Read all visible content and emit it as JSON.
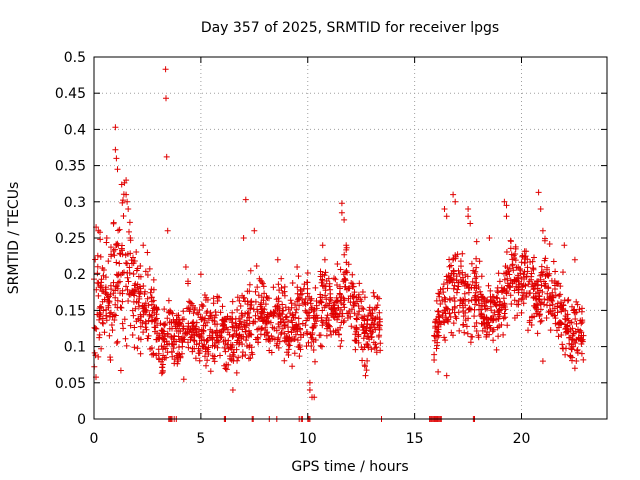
{
  "chart_data": {
    "type": "scatter",
    "title": "Day 357 of 2025, SRMTID for receiver lpgs",
    "xlabel": "GPS time / hours",
    "ylabel": "SRMTID / TECUs",
    "xlim": [
      0,
      24
    ],
    "ylim": [
      0,
      0.5
    ],
    "xticks": [
      0,
      5,
      10,
      15,
      20
    ],
    "xtick_labels": [
      "0",
      "5",
      "10",
      "15",
      "20"
    ],
    "yticks": [
      0,
      0.05,
      0.1,
      0.15,
      0.2,
      0.25,
      0.3,
      0.35,
      0.4,
      0.45,
      0.5
    ],
    "ytick_labels": [
      "0",
      "0.05",
      "0.1",
      "0.15",
      "0.2",
      "0.25",
      "0.3",
      "0.35",
      "0.4",
      "0.45",
      "0.5"
    ],
    "grid": true,
    "marker": "+",
    "color": "#e00000",
    "series": [
      {
        "name": "SRMTID",
        "profile": [
          [
            0.0,
            0.13,
            0.07
          ],
          [
            0.3,
            0.17,
            0.08
          ],
          [
            0.7,
            0.14,
            0.07
          ],
          [
            1.0,
            0.19,
            0.1
          ],
          [
            1.3,
            0.2,
            0.13
          ],
          [
            1.6,
            0.21,
            0.09
          ],
          [
            2.0,
            0.17,
            0.07
          ],
          [
            2.4,
            0.15,
            0.06
          ],
          [
            2.8,
            0.14,
            0.06
          ],
          [
            3.1,
            0.1,
            0.04
          ],
          [
            3.5,
            0.12,
            0.04
          ],
          [
            3.9,
            0.11,
            0.04
          ],
          [
            4.3,
            0.14,
            0.05
          ],
          [
            4.7,
            0.12,
            0.04
          ],
          [
            5.1,
            0.13,
            0.05
          ],
          [
            5.5,
            0.11,
            0.05
          ],
          [
            5.9,
            0.13,
            0.05
          ],
          [
            6.3,
            0.1,
            0.04
          ],
          [
            6.7,
            0.12,
            0.05
          ],
          [
            7.1,
            0.13,
            0.06
          ],
          [
            7.5,
            0.14,
            0.06
          ],
          [
            7.9,
            0.15,
            0.05
          ],
          [
            8.3,
            0.13,
            0.05
          ],
          [
            8.7,
            0.15,
            0.05
          ],
          [
            9.1,
            0.12,
            0.05
          ],
          [
            9.5,
            0.14,
            0.05
          ],
          [
            9.9,
            0.15,
            0.06
          ],
          [
            10.3,
            0.13,
            0.05
          ],
          [
            10.7,
            0.16,
            0.05
          ],
          [
            11.1,
            0.15,
            0.05
          ],
          [
            11.5,
            0.16,
            0.06
          ],
          [
            11.9,
            0.18,
            0.06
          ],
          [
            12.3,
            0.14,
            0.05
          ],
          [
            12.7,
            0.12,
            0.04
          ],
          [
            13.1,
            0.13,
            0.05
          ],
          [
            13.4,
            0.12,
            0.04
          ],
          [
            15.9,
            0.12,
            0.04
          ],
          [
            16.3,
            0.15,
            0.05
          ],
          [
            16.7,
            0.17,
            0.06
          ],
          [
            17.1,
            0.18,
            0.06
          ],
          [
            17.5,
            0.16,
            0.06
          ],
          [
            17.9,
            0.18,
            0.06
          ],
          [
            18.3,
            0.14,
            0.05
          ],
          [
            18.7,
            0.15,
            0.05
          ],
          [
            19.1,
            0.16,
            0.05
          ],
          [
            19.5,
            0.2,
            0.06
          ],
          [
            19.9,
            0.19,
            0.05
          ],
          [
            20.3,
            0.19,
            0.06
          ],
          [
            20.7,
            0.16,
            0.05
          ],
          [
            21.1,
            0.19,
            0.06
          ],
          [
            21.5,
            0.16,
            0.05
          ],
          [
            21.9,
            0.14,
            0.05
          ],
          [
            22.3,
            0.12,
            0.04
          ],
          [
            22.6,
            0.12,
            0.04
          ],
          [
            22.9,
            0.11,
            0.04
          ]
        ],
        "spikes": [
          [
            3.35,
            0.483
          ],
          [
            3.37,
            0.443
          ],
          [
            3.4,
            0.362
          ],
          [
            1.0,
            0.403
          ],
          [
            1.0,
            0.372
          ],
          [
            1.05,
            0.36
          ],
          [
            1.1,
            0.345
          ],
          [
            1.5,
            0.33
          ],
          [
            1.5,
            0.31
          ],
          [
            1.55,
            0.3
          ],
          [
            1.6,
            0.29
          ],
          [
            1.7,
            0.25
          ],
          [
            3.45,
            0.26
          ],
          [
            7.1,
            0.303
          ],
          [
            7.0,
            0.25
          ],
          [
            7.5,
            0.26
          ],
          [
            11.6,
            0.298
          ],
          [
            11.6,
            0.285
          ],
          [
            11.7,
            0.275
          ],
          [
            11.8,
            0.24
          ],
          [
            10.7,
            0.24
          ],
          [
            10.8,
            0.22
          ],
          [
            16.4,
            0.29
          ],
          [
            16.5,
            0.28
          ],
          [
            16.8,
            0.31
          ],
          [
            16.9,
            0.3
          ],
          [
            17.5,
            0.29
          ],
          [
            17.5,
            0.28
          ],
          [
            17.6,
            0.27
          ],
          [
            19.2,
            0.3
          ],
          [
            19.3,
            0.295
          ],
          [
            19.3,
            0.28
          ],
          [
            20.8,
            0.313
          ],
          [
            20.9,
            0.29
          ],
          [
            21.0,
            0.26
          ],
          [
            18.5,
            0.25
          ],
          [
            22.0,
            0.24
          ],
          [
            22.5,
            0.22
          ],
          [
            0.1,
            0.265
          ],
          [
            0.2,
            0.26
          ],
          [
            0.6,
            0.25
          ],
          [
            2.3,
            0.24
          ],
          [
            2.5,
            0.23
          ],
          [
            4.3,
            0.21
          ],
          [
            5.0,
            0.2
          ],
          [
            8.6,
            0.22
          ],
          [
            9.5,
            0.21
          ],
          [
            10.1,
            0.05
          ],
          [
            10.1,
            0.04
          ],
          [
            10.2,
            0.03
          ],
          [
            10.3,
            0.03
          ],
          [
            6.5,
            0.04
          ],
          [
            4.2,
            0.055
          ],
          [
            12.7,
            0.06
          ],
          [
            16.5,
            0.06
          ],
          [
            16.1,
            0.065
          ],
          [
            21.0,
            0.08
          ],
          [
            22.5,
            0.07
          ]
        ],
        "zero_ticks": [
          3.5,
          3.55,
          3.6,
          3.65,
          3.75,
          3.85,
          6.1,
          6.15,
          7.4,
          7.45,
          8.2,
          8.55,
          9.6,
          9.7,
          9.75,
          10.0,
          10.05,
          10.1,
          13.45,
          15.7,
          15.75,
          15.8,
          15.85,
          15.9,
          15.95,
          16.0,
          16.05,
          16.1,
          16.15,
          16.2,
          16.25,
          17.75,
          17.8
        ],
        "gap": [
          13.5,
          15.8
        ]
      }
    ]
  }
}
